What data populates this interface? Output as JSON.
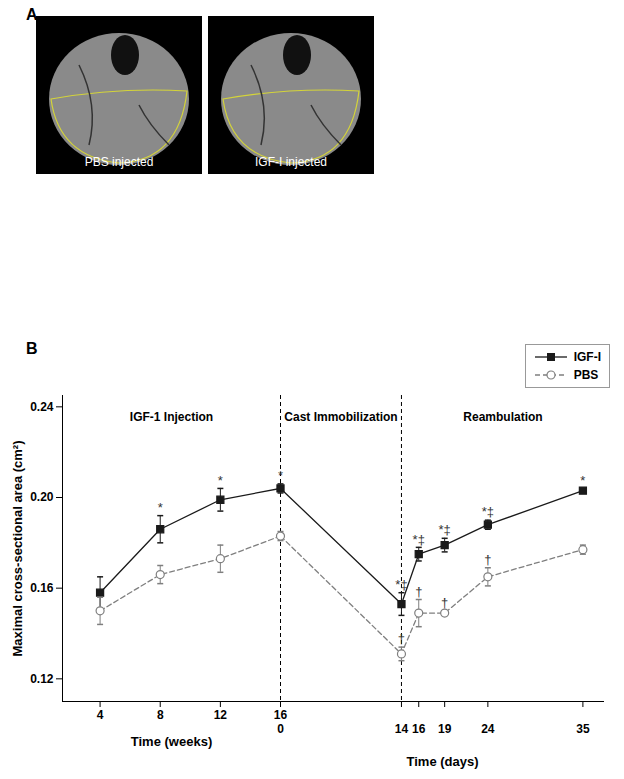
{
  "panel_a": {
    "label": "A",
    "images": [
      {
        "caption": "PBS injected"
      },
      {
        "caption": "IGF-I injected"
      }
    ]
  },
  "panel_b": {
    "label": "B"
  },
  "chart_data": [
    {
      "type": "line",
      "x_label": "Time (weeks)",
      "y_label": "Maximal cross-sectional area (cm²)",
      "x": [
        4,
        8,
        12,
        16
      ],
      "xlim": [
        1.5,
        16
      ],
      "xticks": [
        4,
        8,
        12,
        16
      ],
      "ylim": [
        0.11,
        0.245
      ],
      "yticks": [
        0.12,
        0.16,
        {
          "value": 0.2,
          "label": "0.20"
        },
        0.24
      ],
      "grid": false,
      "phases": [
        {
          "label": "IGF-1 Injection",
          "start": 1.5,
          "end": 16
        }
      ],
      "dividers": [
        16
      ],
      "series": [
        {
          "color": "#1a1a1a",
          "marker": "square",
          "line_style": "solid",
          "values": [
            0.158,
            0.186,
            0.199,
            0.204
          ],
          "errors": [
            0.007,
            0.006,
            0.005,
            0.002
          ],
          "annotations": [
            null,
            "*",
            "*",
            "*"
          ]
        },
        {
          "color": "#7f7f7f",
          "marker": "open circle",
          "line_style": "dashed",
          "values": [
            0.15,
            0.166,
            0.173,
            0.183
          ],
          "errors": [
            0.006,
            0.004,
            0.006,
            0.002
          ],
          "annotations": [
            null,
            null,
            null,
            null
          ]
        }
      ]
    },
    {
      "type": "line",
      "x_label": "Time (days)",
      "x": [
        0,
        14,
        16,
        19,
        24,
        35
      ],
      "xlim": [
        0,
        37.5
      ],
      "xticks": [
        0,
        14,
        16,
        19,
        24,
        35
      ],
      "ylim": [
        0.11,
        0.245
      ],
      "tick_labels": "x",
      "grid": false,
      "legend": "top-right",
      "phases": [
        {
          "label": "Cast Immobilization",
          "start": 0,
          "end": 14
        },
        {
          "label": "Reambulation",
          "start": 14,
          "end": 37.5
        }
      ],
      "dividers": [
        14
      ],
      "series": [
        {
          "name": "IGF-I",
          "color": "#1a1a1a",
          "marker": "square",
          "line_style": "solid",
          "values": [
            0.204,
            0.153,
            0.175,
            0.179,
            0.188,
            0.203
          ],
          "errors": [
            0.002,
            0.005,
            0.003,
            0.003,
            0.002,
            0.001
          ],
          "annotations": [
            null,
            "*‡",
            "*‡",
            "*‡",
            "*‡",
            "*"
          ]
        },
        {
          "name": "PBS",
          "color": "#7f7f7f",
          "marker": "open circle",
          "line_style": "dashed",
          "values": [
            0.183,
            0.131,
            0.149,
            0.149,
            0.165,
            0.177
          ],
          "errors": [
            0.002,
            0.003,
            0.006,
            0.001,
            0.004,
            0.002
          ],
          "annotations": [
            null,
            "†",
            "†",
            "†",
            "†",
            null
          ]
        }
      ]
    }
  ]
}
